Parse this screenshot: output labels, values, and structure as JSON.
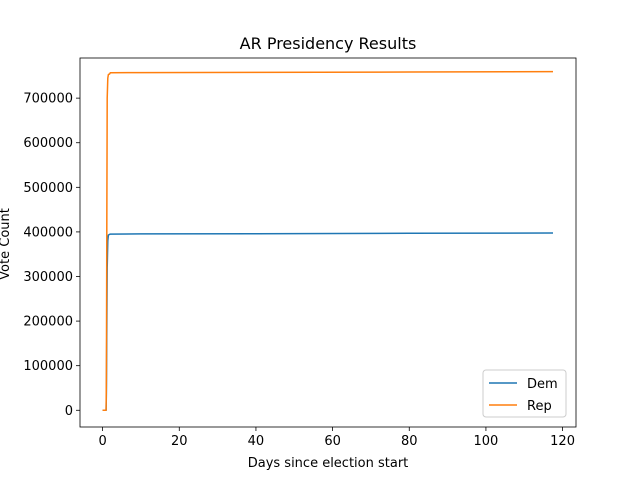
{
  "chart_data": {
    "type": "line",
    "title": "AR Presidency Results",
    "xlabel": "Days since election start",
    "ylabel": "Vote Count",
    "xlim": [
      -5.9,
      123.5
    ],
    "ylim": [
      -37500,
      790000
    ],
    "xticks": [
      0,
      20,
      40,
      60,
      80,
      100,
      120
    ],
    "xtick_labels": [
      "0",
      "20",
      "40",
      "60",
      "80",
      "100",
      "120"
    ],
    "yticks": [
      0,
      100000,
      200000,
      300000,
      400000,
      500000,
      600000,
      700000
    ],
    "ytick_labels": [
      "0",
      "100000",
      "200000",
      "300000",
      "400000",
      "500000",
      "600000",
      "700000"
    ],
    "grid": false,
    "legend": "lower-right",
    "series": [
      {
        "name": "Dem",
        "color": "#1f77b4",
        "points": [
          [
            0,
            0
          ],
          [
            0.9,
            0
          ],
          [
            1.0,
            40000
          ],
          [
            1.1,
            180000
          ],
          [
            1.2,
            320000
          ],
          [
            1.35,
            380000
          ],
          [
            1.5,
            393000
          ],
          [
            2.0,
            395000
          ],
          [
            10,
            395500
          ],
          [
            40,
            396000
          ],
          [
            80,
            396800
          ],
          [
            117.5,
            397500
          ]
        ]
      },
      {
        "name": "Rep",
        "color": "#ff7f0e",
        "points": [
          [
            0,
            0
          ],
          [
            0.9,
            0
          ],
          [
            1.0,
            80000
          ],
          [
            1.1,
            400000
          ],
          [
            1.2,
            700000
          ],
          [
            1.35,
            745000
          ],
          [
            1.5,
            753000
          ],
          [
            1.8,
            754000
          ],
          [
            2.0,
            757000
          ],
          [
            10,
            757200
          ],
          [
            40,
            757800
          ],
          [
            80,
            758500
          ],
          [
            117.5,
            759500
          ]
        ]
      }
    ]
  }
}
